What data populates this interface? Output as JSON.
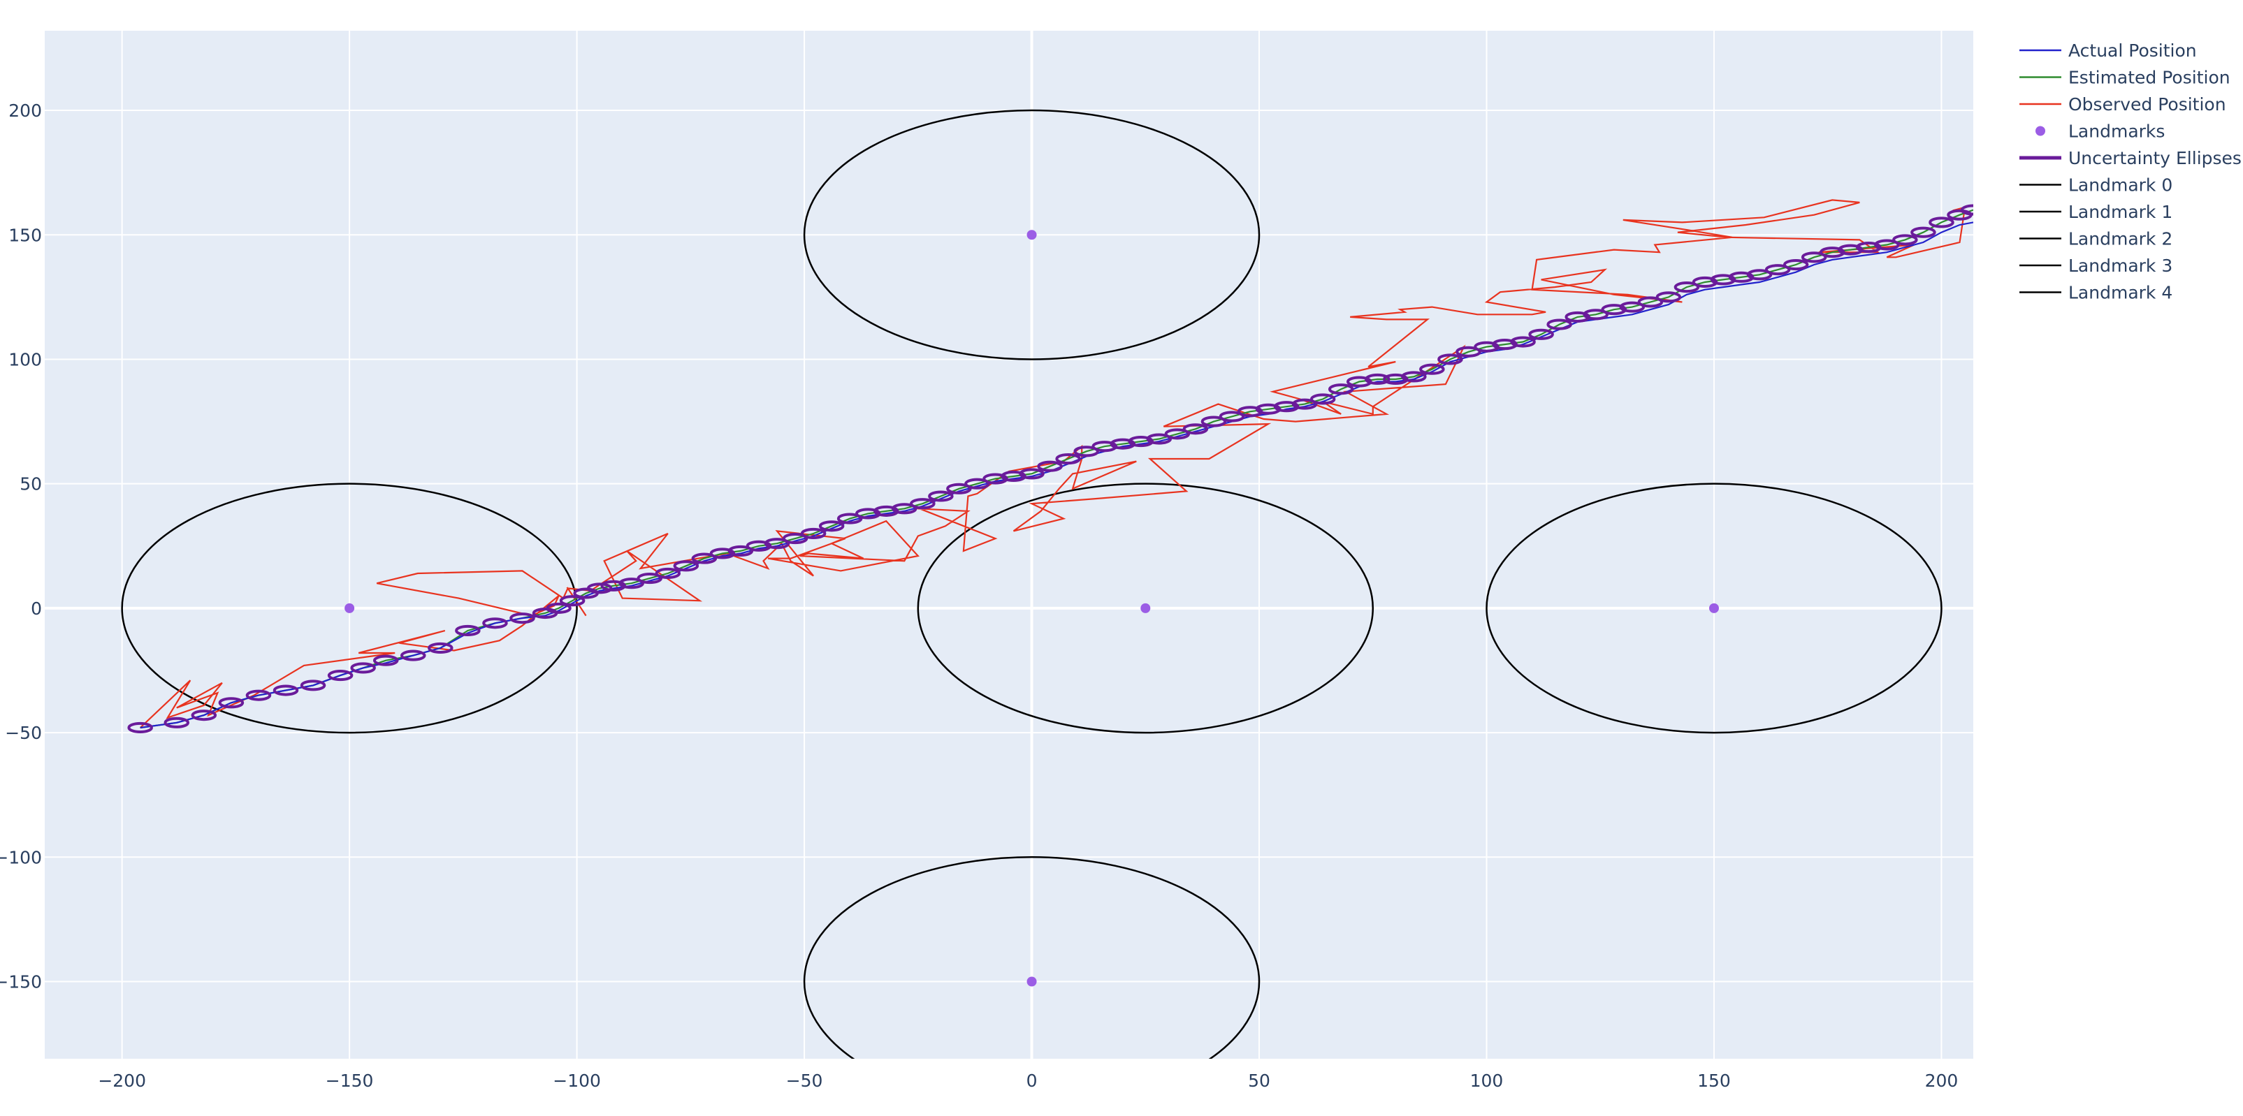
{
  "chart_data": {
    "type": "scatter",
    "title": "",
    "xlabel": "",
    "ylabel": "",
    "xlim": [
      -217,
      207
    ],
    "ylim": [
      -181,
      232
    ],
    "x_ticks": [
      -200,
      -150,
      -100,
      -50,
      0,
      50,
      100,
      150,
      200
    ],
    "y_ticks": [
      -150,
      -100,
      -50,
      0,
      50,
      100,
      150,
      200
    ],
    "x_tick_labels": [
      "−200",
      "−150",
      "−100",
      "−50",
      "0",
      "50",
      "100",
      "150",
      "200"
    ],
    "y_tick_labels": [
      "−150",
      "−100",
      "−50",
      "0",
      "50",
      "100",
      "150",
      "200"
    ],
    "grid": true,
    "legend_position": "top-right-outside",
    "colors": {
      "plot_bg": "#e5ecf6",
      "grid": "#ffffff",
      "actual": "#2222cc",
      "estimated": "#2e8b2e",
      "observed": "#e8331f",
      "landmarks": "#9b5de5",
      "ellipses": "#6a1b9a",
      "landmark_circle": "#000000"
    },
    "series": [
      {
        "name": "Actual Position",
        "mode": "lines",
        "x": [
          -196,
          -188,
          -182,
          -176,
          -170,
          -164,
          -158,
          -152,
          -147,
          -142,
          -136,
          -130,
          -124,
          -118,
          -112,
          -107,
          -104,
          -101,
          -98,
          -95,
          -92,
          -88,
          -84,
          -80,
          -76,
          -72,
          -68,
          -64,
          -60,
          -56,
          -52,
          -48,
          -44,
          -40,
          -36,
          -32,
          -28,
          -24,
          -20,
          -16,
          -12,
          -8,
          -4,
          0,
          4,
          8,
          12,
          16,
          20,
          24,
          28,
          32,
          36,
          40,
          44,
          48,
          52,
          56,
          60,
          64,
          68,
          72,
          76,
          80,
          84,
          88,
          92,
          96,
          100,
          104,
          108,
          112,
          116,
          120,
          124,
          128,
          132,
          136,
          140,
          144,
          148,
          152,
          156,
          160,
          164,
          168,
          172,
          176,
          180,
          184,
          188,
          192,
          196,
          200,
          204,
          207
        ],
        "y": [
          -48,
          -46,
          -43,
          -38,
          -35,
          -33,
          -31,
          -27,
          -24,
          -22,
          -19,
          -16,
          -10,
          -6,
          -4,
          -3,
          -1,
          2,
          5,
          7,
          8,
          9,
          11,
          13,
          16,
          19,
          21,
          22,
          24,
          25,
          27,
          29,
          32,
          35,
          37,
          38,
          39,
          41,
          44,
          47,
          49,
          51,
          52,
          53,
          55,
          58,
          61,
          63,
          65,
          66,
          67,
          69,
          71,
          73,
          75,
          77,
          78,
          80,
          81,
          83,
          86,
          89,
          91,
          91,
          92,
          95,
          99,
          101,
          103,
          104,
          106,
          109,
          112,
          115,
          116,
          117,
          118,
          120,
          122,
          126,
          128,
          129,
          130,
          131,
          133,
          135,
          138,
          140,
          141,
          142,
          143,
          145,
          147,
          151,
          154,
          155
        ]
      },
      {
        "name": "Estimated Position",
        "mode": "lines",
        "x": [
          -196,
          -188,
          -182,
          -176,
          -170,
          -164,
          -158,
          -152,
          -147,
          -142,
          -136,
          -130,
          -124,
          -118,
          -112,
          -107,
          -104,
          -101,
          -98,
          -95,
          -92,
          -88,
          -84,
          -80,
          -76,
          -72,
          -68,
          -64,
          -60,
          -56,
          -52,
          -48,
          -44,
          -40,
          -36,
          -32,
          -28,
          -24,
          -20,
          -16,
          -12,
          -8,
          -4,
          0,
          4,
          8,
          12,
          16,
          20,
          24,
          28,
          32,
          36,
          40,
          44,
          48,
          52,
          56,
          60,
          64,
          68,
          72,
          76,
          80,
          84,
          88,
          92,
          96,
          100,
          104,
          108,
          112,
          116,
          120,
          124,
          128,
          132,
          136,
          140,
          144,
          148,
          152,
          156,
          160,
          164,
          168,
          172,
          176,
          180,
          184,
          188,
          192,
          196,
          200,
          204,
          207
        ],
        "y": [
          -48,
          -46,
          -43,
          -38,
          -35,
          -33,
          -31,
          -27,
          -24,
          -21,
          -19,
          -16,
          -9,
          -6,
          -4,
          -2,
          0,
          3,
          6,
          8,
          9,
          10,
          12,
          14,
          17,
          20,
          22,
          23,
          25,
          26,
          28,
          30,
          33,
          36,
          38,
          39,
          40,
          42,
          45,
          48,
          50,
          52,
          53,
          54,
          57,
          60,
          63,
          65,
          66,
          67,
          68,
          70,
          72,
          75,
          77,
          79,
          80,
          81,
          82,
          84,
          88,
          91,
          92,
          92,
          93,
          96,
          100,
          103,
          105,
          106,
          107,
          110,
          114,
          117,
          118,
          120,
          121,
          123,
          125,
          129,
          131,
          132,
          133,
          134,
          136,
          138,
          141,
          143,
          144,
          145,
          146,
          148,
          151,
          155,
          158,
          160
        ]
      },
      {
        "name": "Observed Position",
        "mode": "lines",
        "x": [
          -196,
          -185,
          -190,
          -182,
          -178,
          -188,
          -179,
          -181,
          -171,
          -160,
          -140,
          -148,
          -129,
          -139,
          -127,
          -117,
          -112,
          -104,
          -105,
          -110,
          -126,
          -144,
          -135,
          -112,
          -103,
          -102,
          -98,
          -102,
          -97,
          -87,
          -89,
          -73,
          -90,
          -94,
          -80,
          -86,
          -67,
          -58,
          -59,
          -55,
          -53,
          -48,
          -56,
          -41,
          -53,
          -58,
          -42,
          -25,
          -32,
          -40,
          -44,
          -37,
          -49,
          -51,
          -28,
          -25,
          -19,
          -14,
          -25,
          -26,
          -8,
          -15,
          -14,
          -12,
          -5,
          7,
          11,
          11,
          9,
          23,
          9,
          6,
          2,
          -4,
          7,
          0,
          14,
          34,
          26,
          39,
          52,
          29,
          41,
          51,
          58,
          78,
          69,
          91,
          95,
          75,
          75,
          64,
          68,
          59,
          53,
          80,
          74,
          87,
          78,
          70,
          82,
          81,
          88,
          98,
          110,
          113,
          100,
          103,
          115,
          123,
          126,
          112,
          128,
          143,
          131,
          110,
          111,
          128,
          138,
          137,
          154,
          144,
          130,
          143,
          161,
          176,
          182,
          172,
          157,
          142,
          153,
          182,
          186,
          173,
          194,
          188,
          190,
          204,
          205,
          203,
          207
        ],
        "y": [
          -48,
          -29,
          -44,
          -39,
          -30,
          -40,
          -34,
          -43,
          -35,
          -23,
          -18,
          -18,
          -9,
          -14,
          -17,
          -13,
          -7,
          5,
          1,
          -3,
          4,
          10,
          14,
          15,
          4,
          8,
          -3,
          8,
          7,
          19,
          23,
          3,
          4,
          19,
          30,
          16,
          22,
          16,
          19,
          26,
          19,
          13,
          31,
          28,
          20,
          20,
          15,
          21,
          35,
          29,
          26,
          20,
          22,
          21,
          19,
          29,
          33,
          39,
          40,
          41,
          28,
          23,
          45,
          46,
          55,
          59,
          65,
          60,
          48,
          59,
          54,
          48,
          39,
          31,
          36,
          42,
          44,
          47,
          60,
          60,
          74,
          73,
          82,
          76,
          75,
          78,
          87,
          90,
          105,
          81,
          78,
          83,
          78,
          84,
          87,
          99,
          97,
          116,
          116,
          117,
          119,
          120,
          121,
          118,
          118,
          119,
          123,
          127,
          129,
          131,
          136,
          132,
          126,
          123,
          126,
          128,
          140,
          144,
          143,
          146,
          149,
          152,
          156,
          155,
          157,
          164,
          163,
          158,
          154,
          151,
          149,
          148,
          143,
          143,
          146,
          141,
          141,
          147,
          159,
          160,
          162
        ]
      },
      {
        "name": "Landmarks",
        "mode": "markers",
        "x": [
          -150,
          0,
          25,
          150,
          0
        ],
        "y": [
          0,
          150,
          0,
          0,
          -150
        ]
      }
    ],
    "uncertainty_ellipses": {
      "name": "Uncertainty Ellipses",
      "rx": 2.5,
      "ry": 1.7,
      "centers_x": [
        -196,
        -188,
        -182,
        -176,
        -170,
        -164,
        -158,
        -152,
        -147,
        -142,
        -136,
        -130,
        -124,
        -118,
        -112,
        -107,
        -104,
        -101,
        -98,
        -95,
        -92,
        -88,
        -84,
        -80,
        -76,
        -72,
        -68,
        -64,
        -60,
        -56,
        -52,
        -48,
        -44,
        -40,
        -36,
        -32,
        -28,
        -24,
        -20,
        -16,
        -12,
        -8,
        -4,
        0,
        4,
        8,
        12,
        16,
        20,
        24,
        28,
        32,
        36,
        40,
        44,
        48,
        52,
        56,
        60,
        64,
        68,
        72,
        76,
        80,
        84,
        88,
        92,
        96,
        100,
        104,
        108,
        112,
        116,
        120,
        124,
        128,
        132,
        136,
        140,
        144,
        148,
        152,
        156,
        160,
        164,
        168,
        172,
        176,
        180,
        184,
        188,
        192,
        196,
        200,
        204,
        207
      ],
      "centers_y": [
        -48,
        -46,
        -43,
        -38,
        -35,
        -33,
        -31,
        -27,
        -24,
        -21,
        -19,
        -16,
        -9,
        -6,
        -4,
        -2,
        0,
        3,
        6,
        8,
        9,
        10,
        12,
        14,
        17,
        20,
        22,
        23,
        25,
        26,
        28,
        30,
        33,
        36,
        38,
        39,
        40,
        42,
        45,
        48,
        50,
        52,
        53,
        54,
        57,
        60,
        63,
        65,
        66,
        67,
        68,
        70,
        72,
        75,
        77,
        79,
        80,
        81,
        82,
        84,
        88,
        91,
        92,
        92,
        93,
        96,
        100,
        103,
        105,
        106,
        107,
        110,
        114,
        117,
        118,
        120,
        121,
        123,
        125,
        129,
        131,
        132,
        133,
        134,
        136,
        138,
        141,
        143,
        144,
        145,
        146,
        148,
        151,
        155,
        158,
        160
      ]
    },
    "landmark_ranges": [
      {
        "name": "Landmark 0",
        "cx": -150,
        "cy": 0,
        "r": 50
      },
      {
        "name": "Landmark 1",
        "cx": 0,
        "cy": 150,
        "r": 50
      },
      {
        "name": "Landmark 2",
        "cx": 25,
        "cy": 0,
        "r": 50
      },
      {
        "name": "Landmark 3",
        "cx": 150,
        "cy": 0,
        "r": 50
      },
      {
        "name": "Landmark 4",
        "cx": 0,
        "cy": -150,
        "r": 50
      }
    ],
    "legend": [
      {
        "label": "Actual Position",
        "kind": "line",
        "color": "#2222cc"
      },
      {
        "label": "Estimated Position",
        "kind": "line",
        "color": "#2e8b2e"
      },
      {
        "label": "Observed Position",
        "kind": "line",
        "color": "#e8331f"
      },
      {
        "label": "Landmarks",
        "kind": "marker",
        "color": "#9b5de5"
      },
      {
        "label": "Uncertainty Ellipses",
        "kind": "thickline",
        "color": "#6a1b9a"
      },
      {
        "label": "Landmark 0",
        "kind": "line",
        "color": "#000000"
      },
      {
        "label": "Landmark 1",
        "kind": "line",
        "color": "#000000"
      },
      {
        "label": "Landmark 2",
        "kind": "line",
        "color": "#000000"
      },
      {
        "label": "Landmark 3",
        "kind": "line",
        "color": "#000000"
      },
      {
        "label": "Landmark 4",
        "kind": "line",
        "color": "#000000"
      }
    ]
  }
}
